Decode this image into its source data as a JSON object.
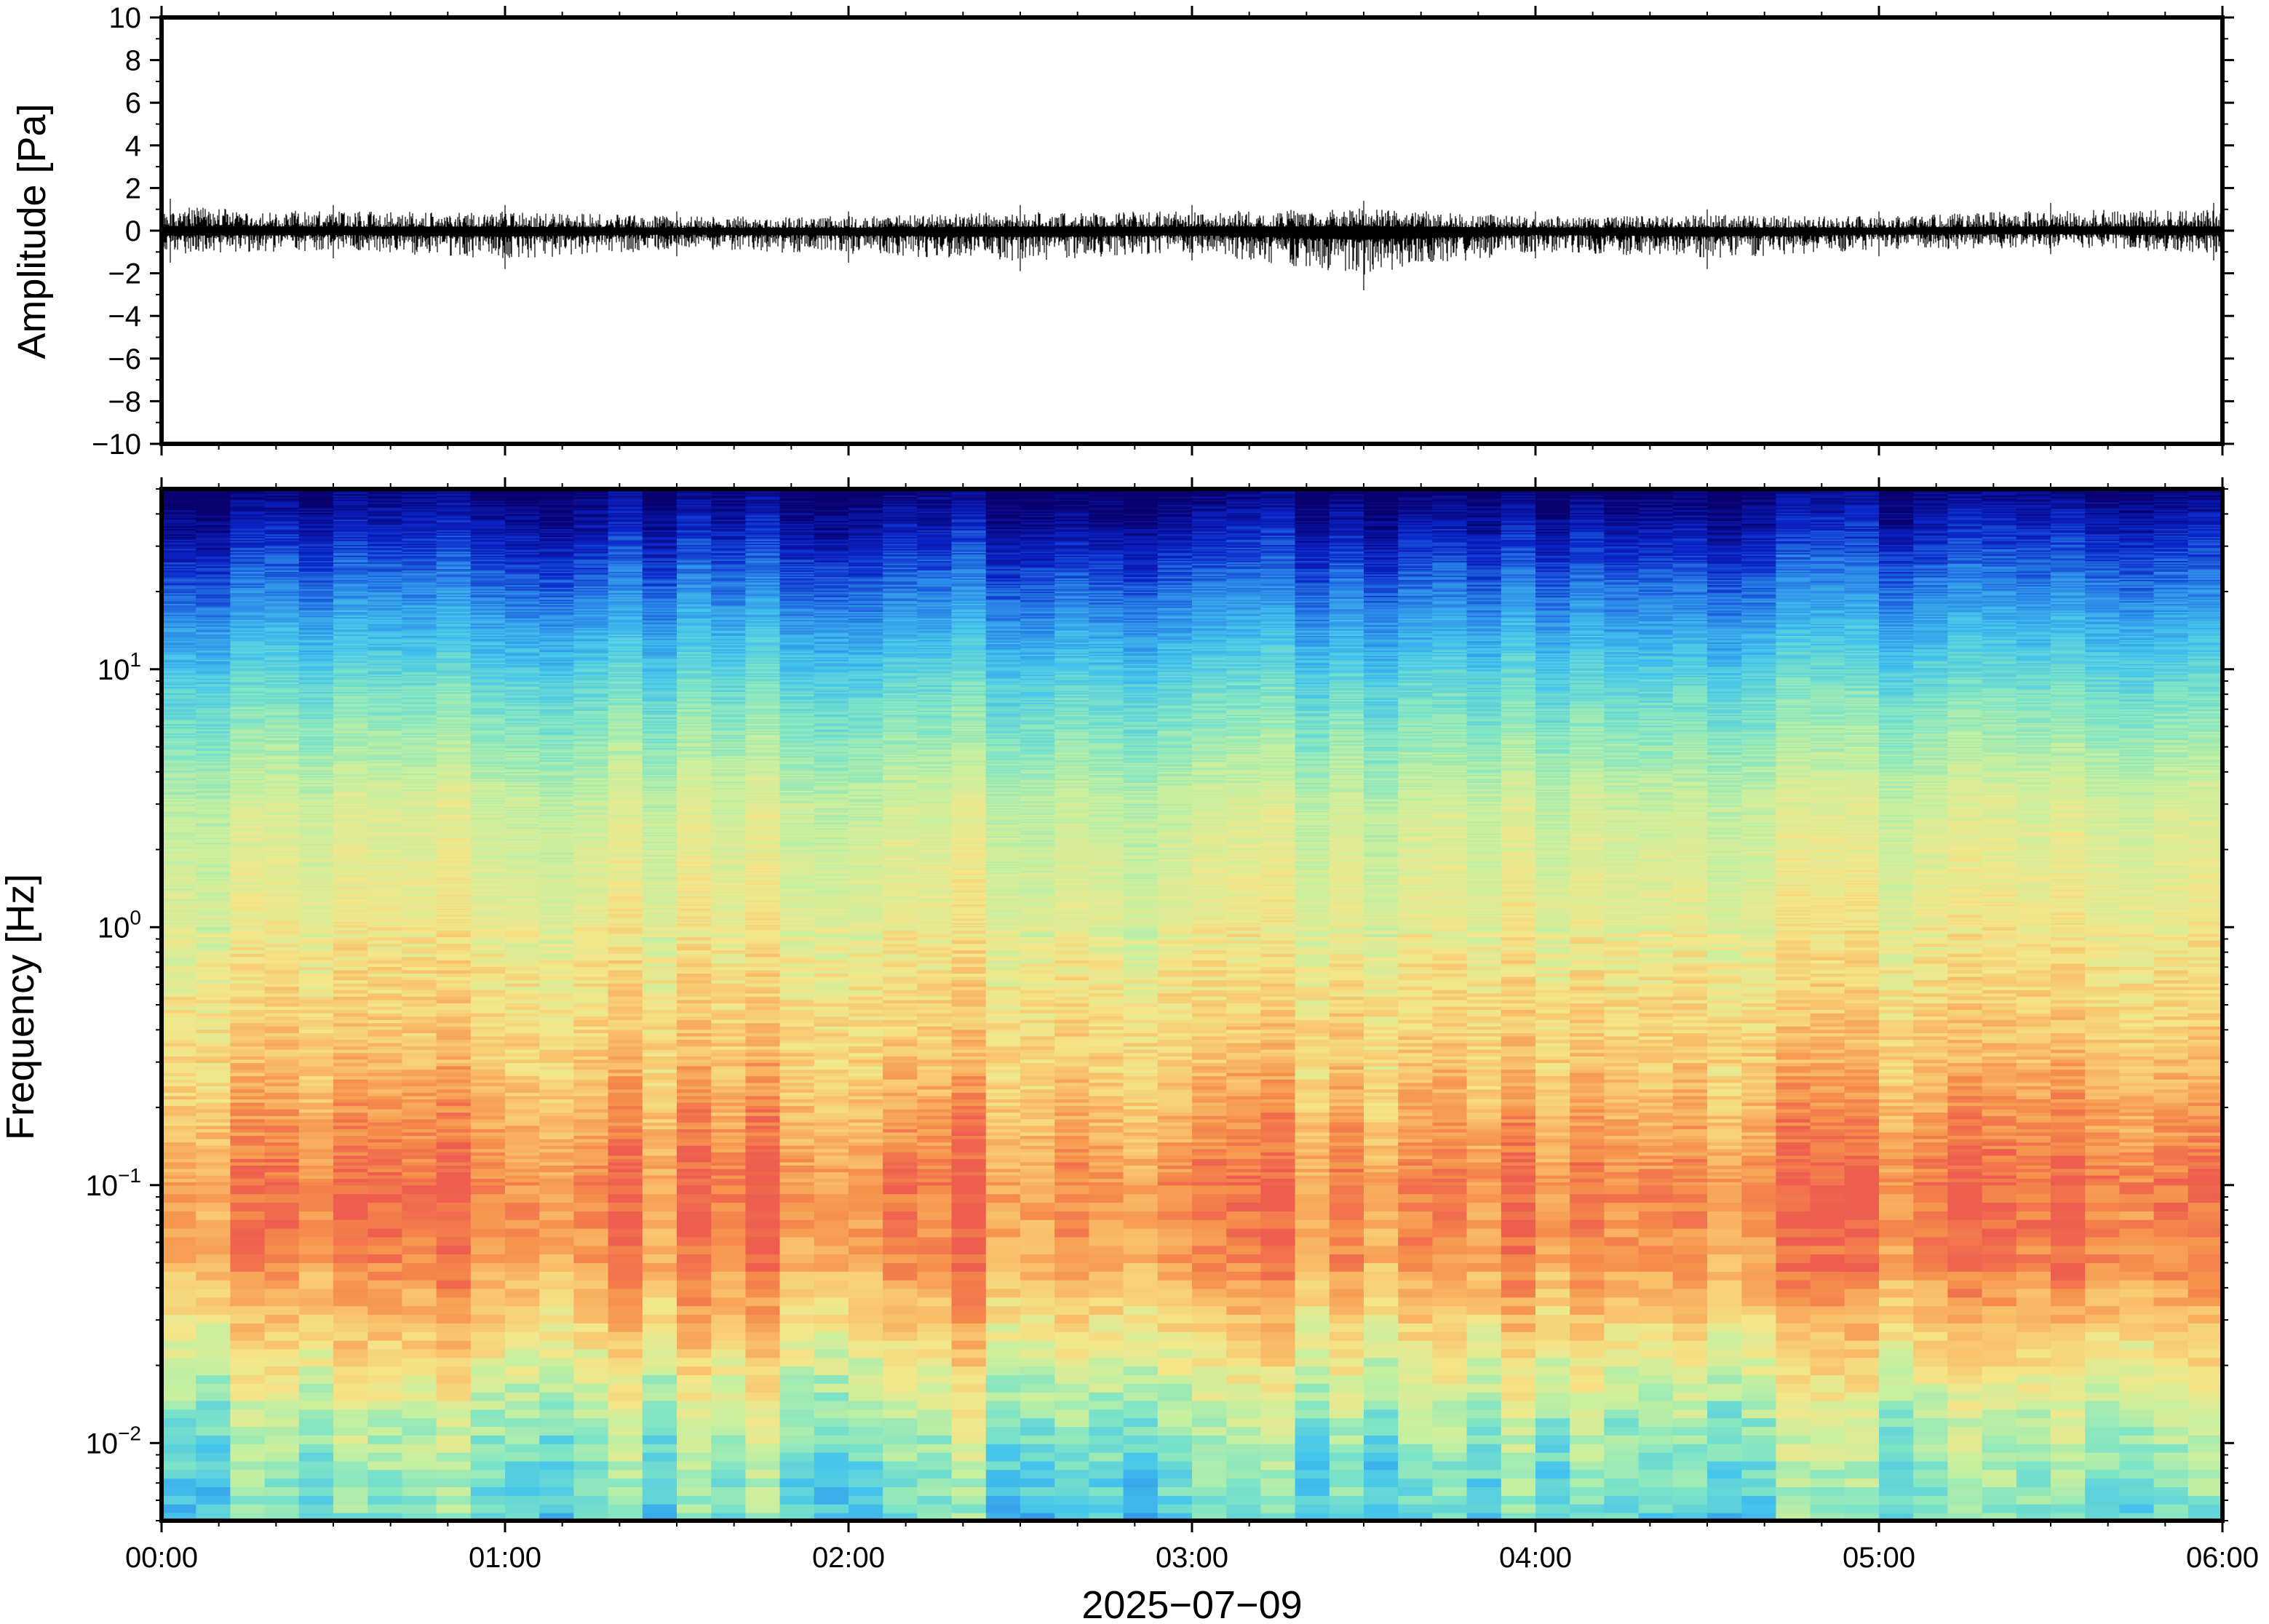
{
  "chart_data": [
    {
      "type": "line",
      "panel": "waveform",
      "title": "",
      "ylabel": "Amplitude [Pa]",
      "xlabel": "",
      "ylim": [
        -10,
        10
      ],
      "yticks": [
        10,
        8,
        6,
        4,
        2,
        0,
        -2,
        -4,
        -6,
        -8,
        -10
      ],
      "ytick_labels": [
        "10",
        "8",
        "6",
        "4",
        "2",
        "0",
        "−2",
        "−4",
        "−6",
        "−8",
        "−10"
      ],
      "xlim_hours": [
        0,
        6
      ],
      "series": [
        {
          "x_hours": [
            0.0,
            0.5,
            1.0,
            1.5,
            2.0,
            2.5,
            3.0,
            3.5,
            4.0,
            4.5,
            5.0,
            5.5,
            6.0
          ],
          "envelope_max": [
            1.5,
            1.2,
            1.2,
            0.9,
            0.9,
            1.2,
            1.2,
            1.4,
            0.9,
            1.0,
            0.9,
            1.3,
            1.3
          ],
          "envelope_min": [
            -1.5,
            -1.3,
            -1.8,
            -1.2,
            -1.5,
            -1.9,
            -1.4,
            -2.8,
            -1.3,
            -1.8,
            -1.2,
            -1.1,
            -1.4
          ],
          "color": "#000000"
        }
      ],
      "grid": false
    },
    {
      "type": "heatmap",
      "panel": "spectrogram",
      "title": "",
      "ylabel": "Frequency [Hz]",
      "xlabel": "2025−07−09",
      "yscale": "log",
      "ylim": [
        0.005,
        50
      ],
      "yticks": [
        {
          "base": "10",
          "exp": "−2",
          "value": 0.01
        },
        {
          "base": "10",
          "exp": "−1",
          "value": 0.1
        },
        {
          "base": "10",
          "exp": "0",
          "value": 1
        },
        {
          "base": "10",
          "exp": "1",
          "value": 10
        }
      ],
      "xticks": [
        "00:00",
        "01:00",
        "02:00",
        "03:00",
        "04:00",
        "05:00",
        "06:00"
      ],
      "xlim_hours": [
        0,
        6
      ],
      "colormap": [
        "#08006e",
        "#0a24c8",
        "#2a86e8",
        "#45c4ec",
        "#7ee4c6",
        "#c6f0a0",
        "#f4e68a",
        "#f9c06a",
        "#f6924c",
        "#ee5e4e"
      ],
      "frequency_profile": [
        {
          "freq": 50,
          "level": 0.0
        },
        {
          "freq": 30,
          "level": 0.12
        },
        {
          "freq": 15,
          "level": 0.28
        },
        {
          "freq": 8,
          "level": 0.42
        },
        {
          "freq": 3,
          "level": 0.58
        },
        {
          "freq": 1,
          "level": 0.64
        },
        {
          "freq": 0.3,
          "level": 0.76
        },
        {
          "freq": 0.1,
          "level": 0.93
        },
        {
          "freq": 0.05,
          "level": 0.88
        },
        {
          "freq": 0.025,
          "level": 0.7
        },
        {
          "freq": 0.012,
          "level": 0.52
        },
        {
          "freq": 0.005,
          "level": 0.4
        }
      ],
      "grid": false
    }
  ]
}
